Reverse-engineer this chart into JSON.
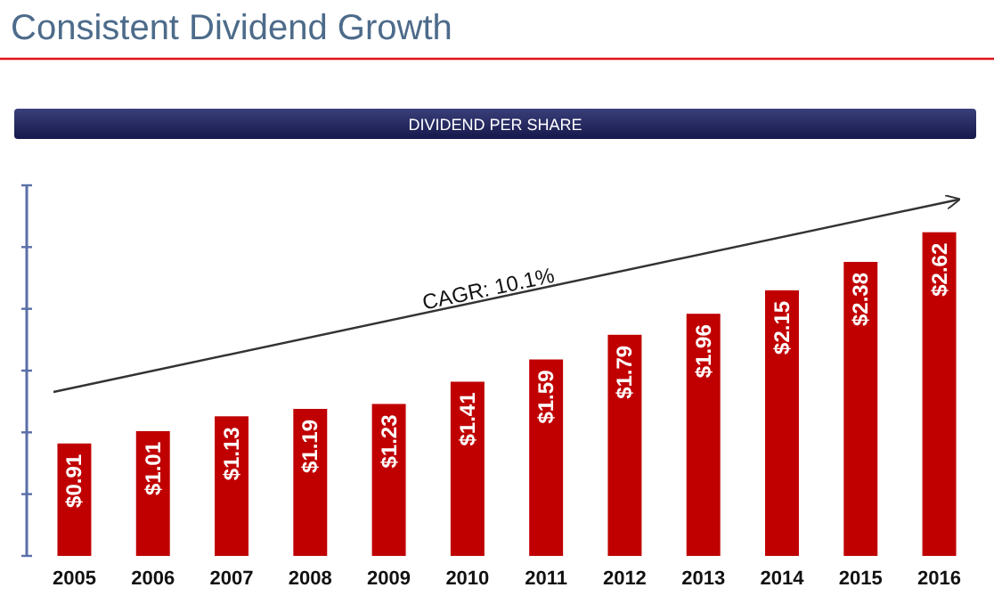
{
  "chart_data": {
    "type": "bar",
    "title": "Consistent Dividend Growth",
    "subtitle": "DIVIDEND PER SHARE",
    "categories": [
      "2005",
      "2006",
      "2007",
      "2008",
      "2009",
      "2010",
      "2011",
      "2012",
      "2013",
      "2014",
      "2015",
      "2016"
    ],
    "values": [
      0.91,
      1.01,
      1.13,
      1.19,
      1.23,
      1.41,
      1.59,
      1.79,
      1.96,
      2.15,
      2.38,
      2.62
    ],
    "value_labels": [
      "$0.91",
      "$1.01",
      "$1.13",
      "$1.19",
      "$1.23",
      "$1.41",
      "$1.59",
      "$1.79",
      "$1.96",
      "$2.15",
      "$2.38",
      "$2.62"
    ],
    "color": "#c00000",
    "ylim": [
      0,
      3
    ],
    "yticks": [
      {
        "value": 0,
        "label": null
      },
      {
        "value": 0.5,
        "label": null
      },
      {
        "value": 1,
        "label": null
      },
      {
        "value": 1.5,
        "label": null
      },
      {
        "value": 2,
        "label": null
      },
      {
        "value": 2.5,
        "label": null
      },
      {
        "value": 3,
        "label": null
      }
    ],
    "annotations": [
      "CAGR: 10.1%"
    ],
    "grid": false
  }
}
